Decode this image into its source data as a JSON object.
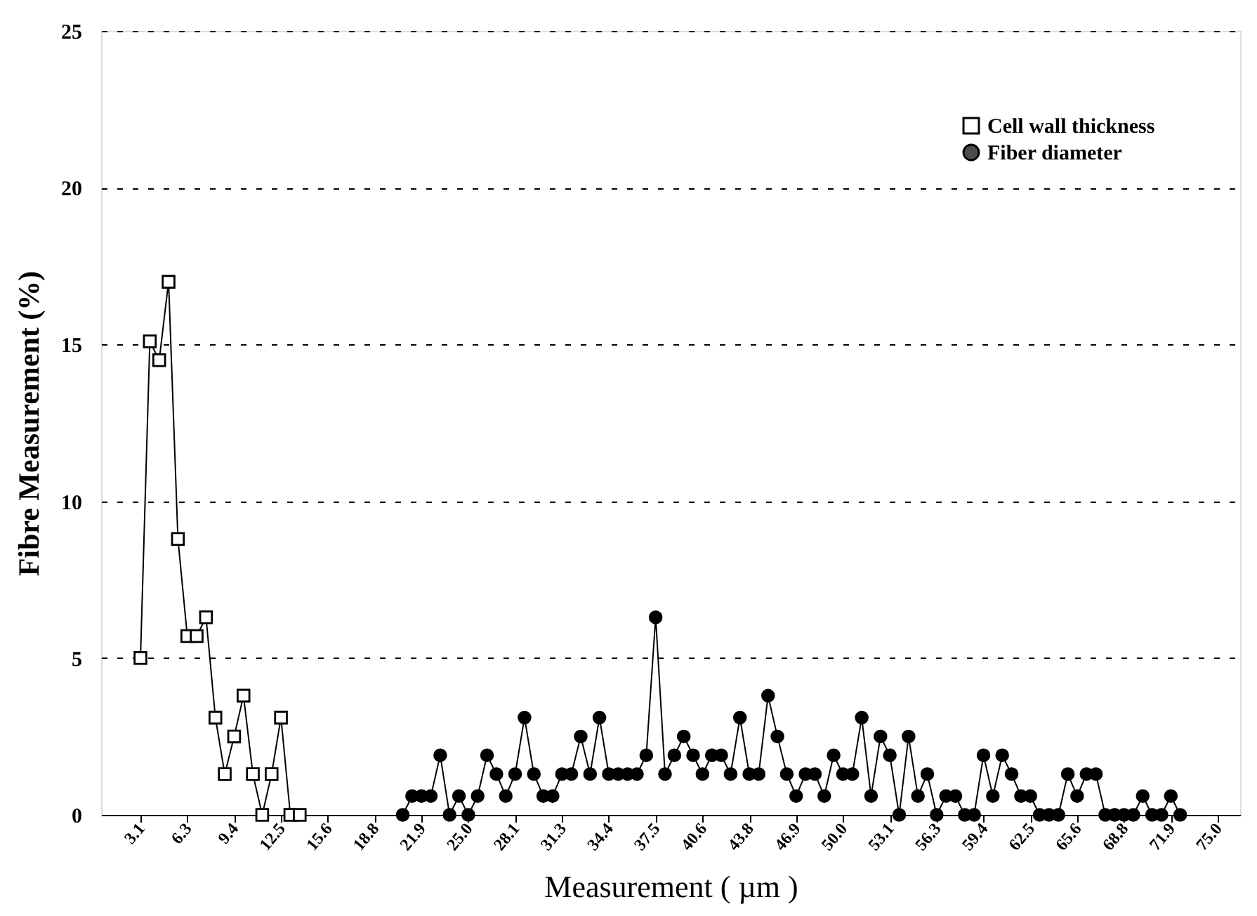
{
  "chart_data": {
    "type": "line",
    "xlabel": "Measurement ( µm )",
    "ylabel": "Fibre Measurement (%)",
    "xlim": [
      0.5,
      76.5
    ],
    "ylim": [
      0,
      25
    ],
    "yticks": [
      0,
      5,
      10,
      15,
      20,
      25
    ],
    "xticks": [
      {
        "value": 3.125,
        "label": "3.1"
      },
      {
        "value": 6.25,
        "label": "6.3"
      },
      {
        "value": 9.375,
        "label": "9.4"
      },
      {
        "value": 12.5,
        "label": "12.5"
      },
      {
        "value": 15.625,
        "label": "15.6"
      },
      {
        "value": 18.75,
        "label": "18.8"
      },
      {
        "value": 21.875,
        "label": "21.9"
      },
      {
        "value": 25,
        "label": "25.0"
      },
      {
        "value": 28.125,
        "label": "28.1"
      },
      {
        "value": 31.25,
        "label": "31.3"
      },
      {
        "value": 34.375,
        "label": "34.4"
      },
      {
        "value": 37.5,
        "label": "37.5"
      },
      {
        "value": 40.625,
        "label": "40.6"
      },
      {
        "value": 43.75,
        "label": "43.8"
      },
      {
        "value": 46.875,
        "label": "46.9"
      },
      {
        "value": 50,
        "label": "50.0"
      },
      {
        "value": 53.125,
        "label": "53.1"
      },
      {
        "value": 56.25,
        "label": "56.3"
      },
      {
        "value": 59.375,
        "label": "59.4"
      },
      {
        "value": 62.5,
        "label": "62.5"
      },
      {
        "value": 65.625,
        "label": "65.6"
      },
      {
        "value": 68.75,
        "label": "68.8"
      },
      {
        "value": 71.875,
        "label": "71.9"
      },
      {
        "value": 75,
        "label": "75.0"
      }
    ],
    "grid": "y",
    "legend": "top right",
    "line_style": "solid",
    "series": [
      {
        "name": "Cell wall thickness",
        "color": "#000000",
        "marker": "square",
        "x": [
          3.125,
          3.75,
          4.375,
          5,
          5.625,
          6.25,
          6.875,
          7.5,
          8.125,
          8.75,
          9.375,
          10,
          10.625,
          11.25,
          11.875,
          12.5,
          13.125,
          13.75
        ],
        "values": [
          5.0,
          15.1,
          14.5,
          17.0,
          8.8,
          5.7,
          5.7,
          6.3,
          3.1,
          1.3,
          2.5,
          3.8,
          1.3,
          0,
          1.3,
          3.1,
          0,
          0
        ]
      },
      {
        "name": "Fiber diameter",
        "color": "#000000",
        "marker": "circle",
        "x": [
          20.625,
          21.25,
          21.875,
          22.5,
          23.125,
          23.75,
          24.375,
          25,
          25.625,
          26.25,
          26.875,
          27.5,
          28.125,
          28.75,
          29.375,
          30,
          30.625,
          31.25,
          31.875,
          32.5,
          33.125,
          33.75,
          34.375,
          35,
          35.625,
          36.25,
          36.875,
          37.5,
          38.125,
          38.75,
          39.375,
          40,
          40.625,
          41.25,
          41.875,
          42.5,
          43.125,
          43.75,
          44.375,
          45,
          45.625,
          46.25,
          46.875,
          47.5,
          48.125,
          48.75,
          49.375,
          50,
          50.625,
          51.25,
          51.875,
          52.5,
          53.125,
          53.75,
          54.375,
          55,
          55.625,
          56.25,
          56.875,
          57.5,
          58.125,
          58.75,
          59.375,
          60,
          60.625,
          61.25,
          61.875,
          62.5,
          63.125,
          63.75,
          64.375,
          65,
          65.625,
          66.25,
          66.875,
          67.5,
          68.125,
          68.75,
          69.375,
          70,
          70.625,
          71.25,
          71.875,
          72.5
        ],
        "values": [
          0,
          0.6,
          0.6,
          0.6,
          1.9,
          0,
          0.6,
          0,
          0.6,
          1.9,
          1.3,
          0.6,
          1.3,
          3.1,
          1.3,
          0.6,
          0.6,
          1.3,
          1.3,
          2.5,
          1.3,
          3.1,
          1.3,
          1.3,
          1.3,
          1.3,
          1.9,
          6.3,
          1.3,
          1.9,
          2.5,
          1.9,
          1.3,
          1.9,
          1.9,
          1.3,
          3.1,
          1.3,
          1.3,
          3.8,
          2.5,
          1.3,
          0.6,
          1.3,
          1.3,
          0.6,
          1.9,
          1.3,
          1.3,
          3.1,
          0.6,
          2.5,
          1.9,
          0,
          2.5,
          0.6,
          1.3,
          0,
          0.6,
          0.6,
          0,
          0,
          1.9,
          0.6,
          1.9,
          1.3,
          0.6,
          0.6,
          0,
          0,
          0,
          1.3,
          0.6,
          1.3,
          1.3,
          0,
          0,
          0,
          0,
          0.6,
          0,
          0,
          0.6,
          0
        ]
      }
    ]
  }
}
